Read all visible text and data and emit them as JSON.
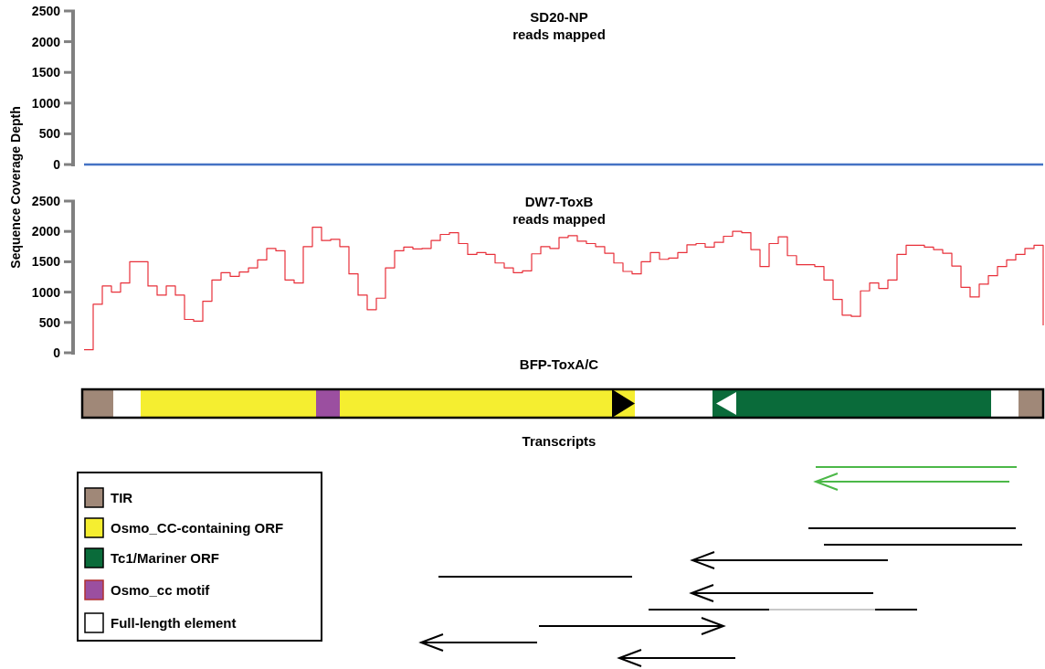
{
  "chart_data": [
    {
      "type": "step",
      "title": "SD20-NP",
      "subtitle": "reads mapped",
      "ylabel": "Sequence Coverage Depth",
      "ylim": [
        0,
        2500
      ],
      "yticks": [
        0,
        500,
        1000,
        1500,
        2000,
        2500
      ],
      "tick_labels": "y",
      "categories": [
        null,
        null,
        null,
        null,
        null,
        null,
        null,
        null,
        null,
        null,
        null,
        null,
        null,
        null,
        null,
        null,
        null,
        null,
        null,
        null,
        null,
        null,
        null,
        null,
        null,
        null,
        null,
        null,
        null,
        null,
        null,
        null,
        null,
        null,
        null,
        null,
        null,
        null,
        null,
        null,
        null,
        null,
        null,
        null,
        null,
        null,
        null,
        null,
        null,
        null,
        null,
        null,
        null,
        null,
        null,
        null,
        null,
        null,
        null,
        null,
        null,
        null,
        null,
        null,
        null,
        null,
        null,
        null,
        null,
        null,
        null,
        null,
        null,
        null,
        null,
        null,
        null,
        null,
        null,
        null,
        null,
        null,
        null,
        null,
        null,
        null,
        null,
        null,
        null,
        null,
        null,
        null,
        null,
        null,
        null,
        null,
        null,
        null,
        null,
        null,
        null,
        null,
        null,
        null,
        null,
        null
      ],
      "series": [
        {
          "color": "#4472c4",
          "values": [
            0,
            0,
            0,
            0,
            0,
            0,
            0,
            0,
            0,
            0,
            0,
            0,
            0,
            0,
            0,
            0,
            0,
            0,
            0,
            0,
            0,
            0,
            0,
            0,
            0,
            0,
            0,
            0,
            0,
            0,
            0,
            0,
            0,
            0,
            0,
            0,
            0,
            0,
            0,
            0,
            0,
            0,
            0,
            0,
            0,
            0,
            0,
            0,
            0,
            0,
            0,
            0,
            0,
            0,
            0,
            0,
            0,
            0,
            0,
            0,
            0,
            0,
            0,
            0,
            0,
            0,
            0,
            0,
            0,
            0,
            0,
            0,
            0,
            0,
            0,
            0,
            0,
            0,
            0,
            0,
            0,
            0,
            0,
            0,
            0,
            0,
            0,
            0,
            0,
            0,
            0,
            0,
            0,
            0,
            0,
            0,
            0,
            0,
            0,
            0,
            0,
            0,
            0,
            0,
            0,
            0
          ]
        }
      ]
    },
    {
      "type": "step",
      "title": "DW7-ToxB",
      "subtitle": "reads mapped",
      "ylim": [
        0,
        2500
      ],
      "yticks": [
        0,
        500,
        1000,
        1500,
        2000,
        2500
      ],
      "tick_labels": "y",
      "categories": [
        null,
        null,
        null,
        null,
        null,
        null,
        null,
        null,
        null,
        null,
        null,
        null,
        null,
        null,
        null,
        null,
        null,
        null,
        null,
        null,
        null,
        null,
        null,
        null,
        null,
        null,
        null,
        null,
        null,
        null,
        null,
        null,
        null,
        null,
        null,
        null,
        null,
        null,
        null,
        null,
        null,
        null,
        null,
        null,
        null,
        null,
        null,
        null,
        null,
        null,
        null,
        null,
        null,
        null,
        null,
        null,
        null,
        null,
        null,
        null,
        null,
        null,
        null,
        null,
        null,
        null,
        null,
        null,
        null,
        null,
        null,
        null,
        null,
        null,
        null,
        null,
        null,
        null,
        null,
        null,
        null,
        null,
        null,
        null,
        null,
        null,
        null,
        null,
        null,
        null,
        null,
        null,
        null,
        null,
        null,
        null,
        null,
        null,
        null,
        null,
        null,
        null,
        null,
        null,
        null,
        null
      ],
      "series": [
        {
          "color": "#e8303a",
          "values": [
            50,
            800,
            1100,
            1000,
            1150,
            1500,
            1500,
            1100,
            950,
            1100,
            950,
            550,
            520,
            850,
            1200,
            1320,
            1260,
            1330,
            1400,
            1530,
            1720,
            1680,
            1200,
            1150,
            1750,
            2070,
            1850,
            1870,
            1750,
            1300,
            950,
            710,
            900,
            1400,
            1680,
            1740,
            1710,
            1720,
            1850,
            1950,
            1980,
            1800,
            1620,
            1650,
            1620,
            1480,
            1400,
            1320,
            1350,
            1630,
            1750,
            1720,
            1900,
            1930,
            1840,
            1800,
            1750,
            1640,
            1480,
            1340,
            1300,
            1500,
            1650,
            1540,
            1560,
            1650,
            1780,
            1800,
            1740,
            1820,
            1920,
            2000,
            1980,
            1700,
            1420,
            1800,
            1910,
            1600,
            1450,
            1450,
            1420,
            1200,
            880,
            620,
            600,
            1020,
            1150,
            1060,
            1200,
            1620,
            1770,
            1770,
            1740,
            1700,
            1640,
            1430,
            1080,
            920,
            1130,
            1270,
            1420,
            1530,
            1620,
            1720,
            1770,
            450
          ]
        }
      ]
    },
    {
      "type": "other",
      "title": "BFP-ToxA/C",
      "annotations": [
        "Transcripts"
      ],
      "categories": [
        "TIR",
        "Osmo_CC-containing ORF",
        "Tc1/Mariner ORF",
        "Osmo_cc motif",
        "Full-length element"
      ],
      "colors": [
        "#a08878",
        "#f5ee30",
        "#0a6b3a",
        "#9b4fa0",
        "#ffffff"
      ]
    }
  ]
}
